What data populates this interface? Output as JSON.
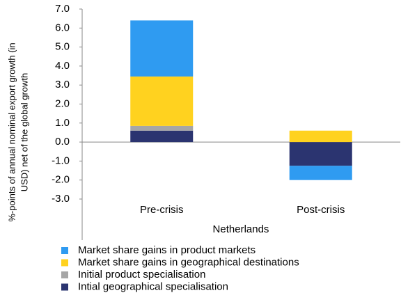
{
  "chart_data": {
    "type": "stacked_bar",
    "y_label": [
      "%-points of annual nominal export growth (in",
      "USD) net of the global growth"
    ],
    "x_label": "Netherlands",
    "categories": [
      "Pre-crisis",
      "Post-crisis"
    ],
    "series": [
      {
        "name": "Market share gains in product markets",
        "color": "#2f9bf1",
        "values": [
          2.95,
          -0.75
        ]
      },
      {
        "name": "Market share gains in geographical destinations",
        "color": "#ffd21f",
        "values": [
          2.6,
          0.6
        ]
      },
      {
        "name": "Initial product specialisation",
        "color": "#a6a6a6",
        "values": [
          0.25,
          0
        ]
      },
      {
        "name": "Intial geographical specialisation",
        "color": "#2b3470",
        "values": [
          0.6,
          -1.25
        ]
      }
    ],
    "ylim": [
      -3,
      7
    ],
    "yticks": [
      {
        "value": 7,
        "label": "7.0"
      },
      {
        "value": 6,
        "label": "6.0"
      },
      {
        "value": 5,
        "label": "5.0"
      },
      {
        "value": 4,
        "label": "4.0"
      },
      {
        "value": 3,
        "label": "3.0"
      },
      {
        "value": 2,
        "label": "2.0"
      },
      {
        "value": 1,
        "label": "1.0"
      },
      {
        "value": 0,
        "label": "0.0"
      },
      {
        "value": -1,
        "label": "-1.0"
      },
      {
        "value": -2,
        "label": "-2.0"
      },
      {
        "value": -3,
        "label": "-3.0"
      }
    ]
  }
}
